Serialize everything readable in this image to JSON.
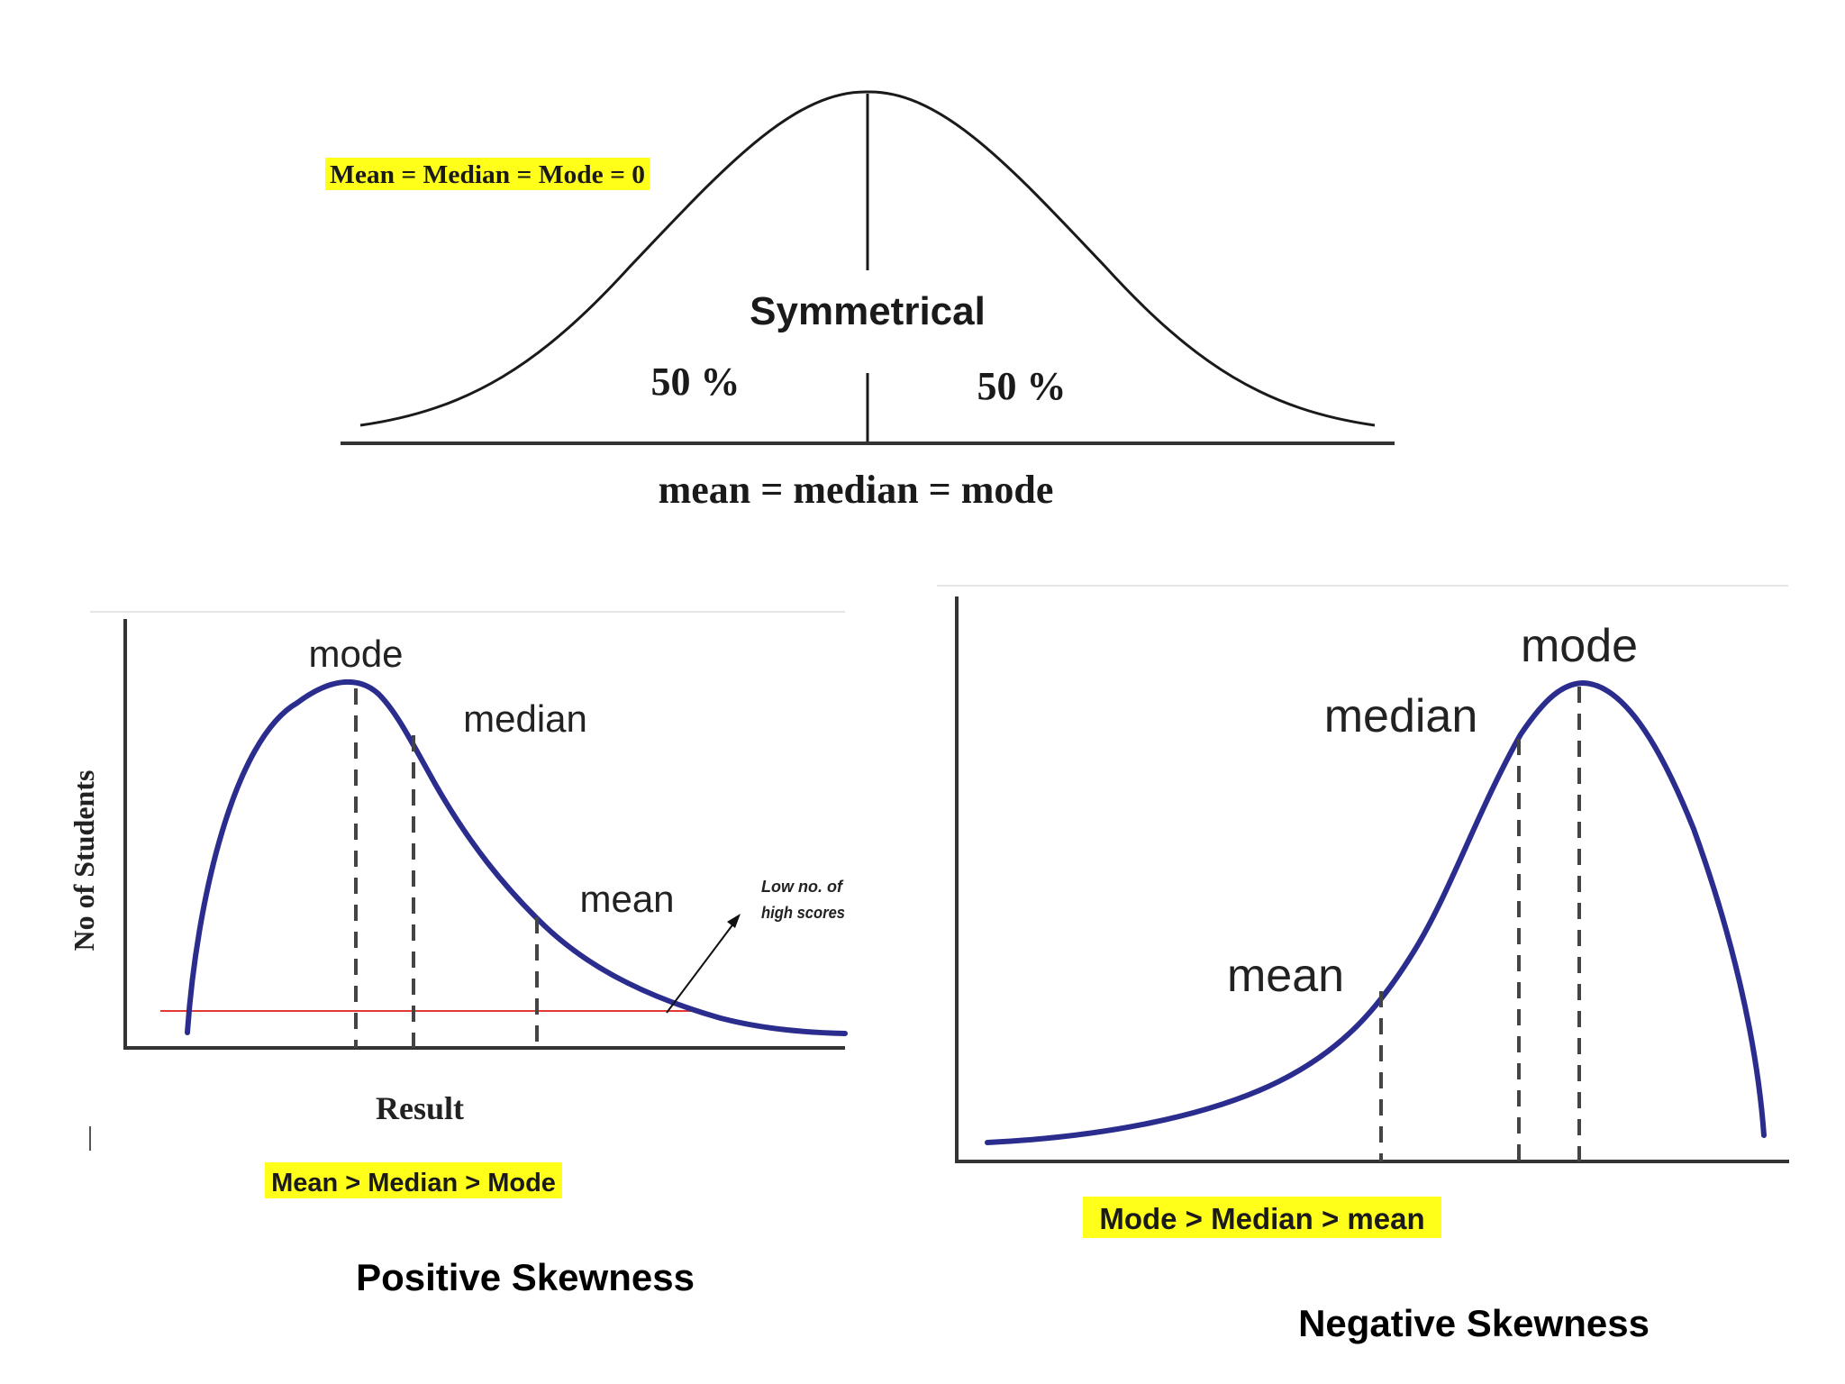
{
  "colors": {
    "highlight": "#ffff1a",
    "curve": "#2b2d8e",
    "axis": "#333333",
    "threshold": "#e53935"
  },
  "symmetrical": {
    "highlight_label": "Mean = Median = Mode = 0",
    "title": "Symmetrical",
    "left_percent": "50 %",
    "right_percent": "50 %",
    "equality_label": "mean = median = mode"
  },
  "positive": {
    "mode_label": "mode",
    "median_label": "median",
    "mean_label": "mean",
    "annotation_line1": "Low no. of",
    "annotation_line2": "high scores",
    "y_axis_label": "No of Students",
    "x_axis_label": "Result",
    "highlight_label": "Mean > Median > Mode",
    "caption": "Positive Skewness"
  },
  "negative": {
    "mode_label": "mode",
    "median_label": "median",
    "mean_label": "mean",
    "highlight_label": "Mode > Median > mean",
    "caption": "Negative Skewness"
  }
}
